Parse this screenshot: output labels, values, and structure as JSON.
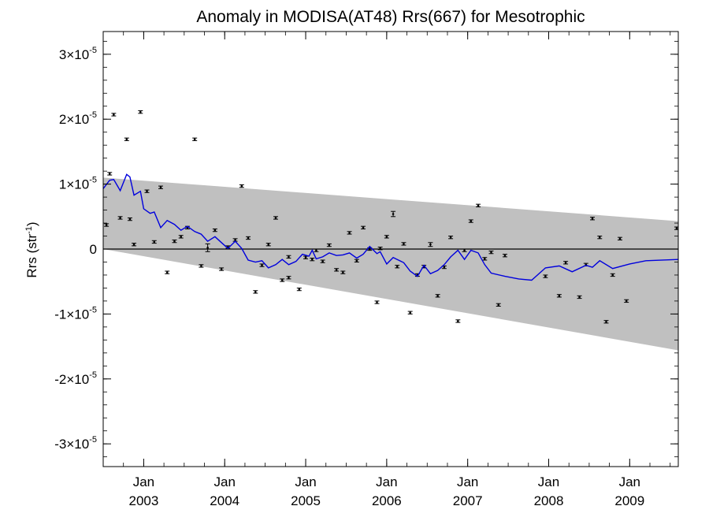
{
  "chart_data": {
    "type": "line",
    "title": "Anomaly in MODISA(AT48) Rrs(667) for Mesotrophic",
    "ylabel": "Rrs (str",
    "ylabel_sup": "-1",
    "ylabel_close": ")",
    "xlim": [
      2002.5,
      2009.6
    ],
    "ylim": [
      -3.35e-05,
      3.35e-05
    ],
    "yticks": [
      {
        "value": -3e-05,
        "mant": "-3×10",
        "exp": "-5"
      },
      {
        "value": -2e-05,
        "mant": "-2×10",
        "exp": "-5"
      },
      {
        "value": -1e-05,
        "mant": "-1×10",
        "exp": "-5"
      },
      {
        "value": 0,
        "mant": "0",
        "exp": ""
      },
      {
        "value": 1e-05,
        "mant": "1×10",
        "exp": "-5"
      },
      {
        "value": 2e-05,
        "mant": "2×10",
        "exp": "-5"
      },
      {
        "value": 3e-05,
        "mant": "3×10",
        "exp": "-5"
      }
    ],
    "xticks": [
      {
        "value": 2003.0,
        "month": "Jan",
        "year": "2003"
      },
      {
        "value": 2004.0,
        "month": "Jan",
        "year": "2004"
      },
      {
        "value": 2005.0,
        "month": "Jan",
        "year": "2005"
      },
      {
        "value": 2006.0,
        "month": "Jan",
        "year": "2006"
      },
      {
        "value": 2007.0,
        "month": "Jan",
        "year": "2007"
      },
      {
        "value": 2008.0,
        "month": "Jan",
        "year": "2008"
      },
      {
        "value": 2009.0,
        "month": "Jan",
        "year": "2009"
      }
    ],
    "grid": false,
    "envelope": {
      "color": "#c0c0c0",
      "upper": [
        [
          2002.5,
          1.1e-05
        ],
        [
          2009.6,
          4.3e-06
        ]
      ],
      "lower": [
        [
          2002.5,
          0
        ],
        [
          2009.6,
          -1.56e-05
        ]
      ]
    },
    "zero_line": true,
    "series": [
      {
        "kind": "points_with_errorbars",
        "color": "#000000",
        "points": [
          [
            2002.54,
            3.7e-06,
            2e-07
          ],
          [
            2002.58,
            1.16e-05,
            2e-07
          ],
          [
            2002.63,
            2.07e-05,
            2e-07
          ],
          [
            2002.71,
            4.8e-06,
            2e-07
          ],
          [
            2002.79,
            1.69e-05,
            2e-07
          ],
          [
            2002.83,
            4.6e-06,
            2e-07
          ],
          [
            2002.88,
            7e-07,
            2e-07
          ],
          [
            2002.96,
            2.11e-05,
            2e-07
          ],
          [
            2003.04,
            8.9e-06,
            2e-07
          ],
          [
            2003.13,
            1.1e-06,
            2e-07
          ],
          [
            2003.21,
            9.5e-06,
            2e-07
          ],
          [
            2003.29,
            -3.6e-06,
            2e-07
          ],
          [
            2003.38,
            1.2e-06,
            2e-07
          ],
          [
            2003.46,
            1.9e-06,
            2e-07
          ],
          [
            2003.54,
            3.3e-06,
            2e-07
          ],
          [
            2003.63,
            1.69e-05,
            2e-07
          ],
          [
            2003.71,
            -2.6e-06,
            2e-07
          ],
          [
            2003.79,
            2e-07,
            6e-07
          ],
          [
            2003.88,
            2.9e-06,
            2e-07
          ],
          [
            2003.96,
            -3.1e-06,
            2e-07
          ],
          [
            2004.04,
            3e-07,
            2e-07
          ],
          [
            2004.13,
            1.4e-06,
            2e-07
          ],
          [
            2004.21,
            9.7e-06,
            2e-07
          ],
          [
            2004.29,
            1.7e-06,
            2e-07
          ],
          [
            2004.38,
            -6.6e-06,
            2e-07
          ],
          [
            2004.46,
            -2.5e-06,
            2e-07
          ],
          [
            2004.54,
            7e-07,
            2e-07
          ],
          [
            2004.63,
            4.8e-06,
            2e-07
          ],
          [
            2004.71,
            -4.8e-06,
            2e-07
          ],
          [
            2004.79,
            -1.2e-06,
            2e-07
          ],
          [
            2004.79,
            -4.4e-06,
            2e-07
          ],
          [
            2004.92,
            -6.2e-06,
            2e-07
          ],
          [
            2005.0,
            -1.3e-06,
            2e-07
          ],
          [
            2005.08,
            -1.6e-06,
            2e-07
          ],
          [
            2005.13,
            -2e-07,
            2e-07
          ],
          [
            2005.21,
            -1.9e-06,
            2e-07
          ],
          [
            2005.29,
            6e-07,
            2e-07
          ],
          [
            2005.38,
            -3.2e-06,
            2e-07
          ],
          [
            2005.46,
            -3.6e-06,
            2e-07
          ],
          [
            2005.54,
            2.5e-06,
            2e-07
          ],
          [
            2005.63,
            -1.8e-06,
            2e-07
          ],
          [
            2005.71,
            3.3e-06,
            2e-07
          ],
          [
            2005.79,
            0,
            2e-07
          ],
          [
            2005.88,
            -8.2e-06,
            2e-07
          ],
          [
            2005.92,
            1e-07,
            2e-07
          ],
          [
            2006.0,
            1.9e-06,
            2e-07
          ],
          [
            2006.08,
            5.4e-06,
            4e-07
          ],
          [
            2006.13,
            -2.7e-06,
            2e-07
          ],
          [
            2006.21,
            8e-07,
            2e-07
          ],
          [
            2006.29,
            -9.8e-06,
            2e-07
          ],
          [
            2006.38,
            -4e-06,
            2e-07
          ],
          [
            2006.46,
            -2.7e-06,
            2e-07
          ],
          [
            2006.54,
            7e-07,
            3e-07
          ],
          [
            2006.63,
            -7.2e-06,
            2e-07
          ],
          [
            2006.71,
            -2.8e-06,
            2e-07
          ],
          [
            2006.79,
            1.8e-06,
            2e-07
          ],
          [
            2006.88,
            -1.11e-05,
            2e-07
          ],
          [
            2006.96,
            -2e-07,
            2e-07
          ],
          [
            2007.04,
            4.3e-06,
            2e-07
          ],
          [
            2007.13,
            6.7e-06,
            2e-07
          ],
          [
            2007.21,
            -1.5e-06,
            2e-07
          ],
          [
            2007.29,
            -5e-07,
            2e-07
          ],
          [
            2007.38,
            -8.6e-06,
            2e-07
          ],
          [
            2007.46,
            -1e-06,
            2e-07
          ],
          [
            2007.96,
            -4.2e-06,
            2e-07
          ],
          [
            2008.13,
            -7.2e-06,
            2e-07
          ],
          [
            2008.21,
            -2.1e-06,
            2e-07
          ],
          [
            2008.38,
            -7.4e-06,
            2e-07
          ],
          [
            2008.46,
            -2.4e-06,
            2e-07
          ],
          [
            2008.54,
            4.7e-06,
            2e-07
          ],
          [
            2008.63,
            1.8e-06,
            2e-07
          ],
          [
            2008.71,
            -1.12e-05,
            2e-07
          ],
          [
            2008.79,
            -4e-06,
            2e-07
          ],
          [
            2008.88,
            1.6e-06,
            2e-07
          ],
          [
            2008.96,
            -8e-06,
            2e-07
          ],
          [
            2009.58,
            3.2e-06,
            2e-07
          ]
        ]
      },
      {
        "kind": "line",
        "color": "#0000dd",
        "points": [
          [
            2002.5,
            9.3e-06
          ],
          [
            2002.58,
            1.06e-05
          ],
          [
            2002.63,
            1.07e-05
          ],
          [
            2002.71,
            9e-06
          ],
          [
            2002.79,
            1.15e-05
          ],
          [
            2002.83,
            1.11e-05
          ],
          [
            2002.88,
            8.3e-06
          ],
          [
            2002.96,
            8.9e-06
          ],
          [
            2003.0,
            6.2e-06
          ],
          [
            2003.08,
            5.5e-06
          ],
          [
            2003.13,
            5.7e-06
          ],
          [
            2003.21,
            3.3e-06
          ],
          [
            2003.29,
            4.4e-06
          ],
          [
            2003.38,
            3.8e-06
          ],
          [
            2003.46,
            2.9e-06
          ],
          [
            2003.54,
            3.5e-06
          ],
          [
            2003.63,
            2.7e-06
          ],
          [
            2003.71,
            2.3e-06
          ],
          [
            2003.79,
            1.2e-06
          ],
          [
            2003.88,
            1.9e-06
          ],
          [
            2003.96,
            1e-06
          ],
          [
            2004.04,
            1e-07
          ],
          [
            2004.13,
            1.2e-06
          ],
          [
            2004.21,
            1e-07
          ],
          [
            2004.29,
            -1.7e-06
          ],
          [
            2004.38,
            -2e-06
          ],
          [
            2004.46,
            -1.8e-06
          ],
          [
            2004.54,
            -2.9e-06
          ],
          [
            2004.63,
            -2.4e-06
          ],
          [
            2004.71,
            -1.6e-06
          ],
          [
            2004.79,
            -2.4e-06
          ],
          [
            2004.88,
            -1.9e-06
          ],
          [
            2004.96,
            -8e-07
          ],
          [
            2005.04,
            -1.1e-06
          ],
          [
            2005.08,
            -2e-07
          ],
          [
            2005.13,
            -1.5e-06
          ],
          [
            2005.21,
            -1.2e-06
          ],
          [
            2005.29,
            -6e-07
          ],
          [
            2005.38,
            -1e-06
          ],
          [
            2005.46,
            -9e-07
          ],
          [
            2005.54,
            -6e-07
          ],
          [
            2005.63,
            -1.4e-06
          ],
          [
            2005.71,
            -8e-07
          ],
          [
            2005.79,
            4e-07
          ],
          [
            2005.88,
            -7e-07
          ],
          [
            2005.92,
            -4e-07
          ],
          [
            2006.0,
            -2.3e-06
          ],
          [
            2006.08,
            -1.3e-06
          ],
          [
            2006.13,
            -1.6e-06
          ],
          [
            2006.21,
            -2.1e-06
          ],
          [
            2006.29,
            -3.4e-06
          ],
          [
            2006.38,
            -4.2e-06
          ],
          [
            2006.46,
            -2.5e-06
          ],
          [
            2006.54,
            -3.8e-06
          ],
          [
            2006.63,
            -3.3e-06
          ],
          [
            2006.71,
            -2.4e-06
          ],
          [
            2006.79,
            -1.2e-06
          ],
          [
            2006.88,
            -2e-07
          ],
          [
            2006.96,
            -1.6e-06
          ],
          [
            2007.04,
            -2e-07
          ],
          [
            2007.13,
            -6e-07
          ],
          [
            2007.21,
            -2.4e-06
          ],
          [
            2007.29,
            -3.7e-06
          ],
          [
            2007.46,
            -4.2e-06
          ],
          [
            2007.63,
            -4.6e-06
          ],
          [
            2007.79,
            -4.8e-06
          ],
          [
            2007.96,
            -2.9e-06
          ],
          [
            2008.13,
            -2.6e-06
          ],
          [
            2008.29,
            -3.5e-06
          ],
          [
            2008.46,
            -2.5e-06
          ],
          [
            2008.54,
            -2.8e-06
          ],
          [
            2008.63,
            -1.8e-06
          ],
          [
            2008.79,
            -3e-06
          ],
          [
            2009.0,
            -2.3e-06
          ],
          [
            2009.2,
            -1.8e-06
          ],
          [
            2009.6,
            -1.6e-06
          ]
        ]
      }
    ]
  }
}
